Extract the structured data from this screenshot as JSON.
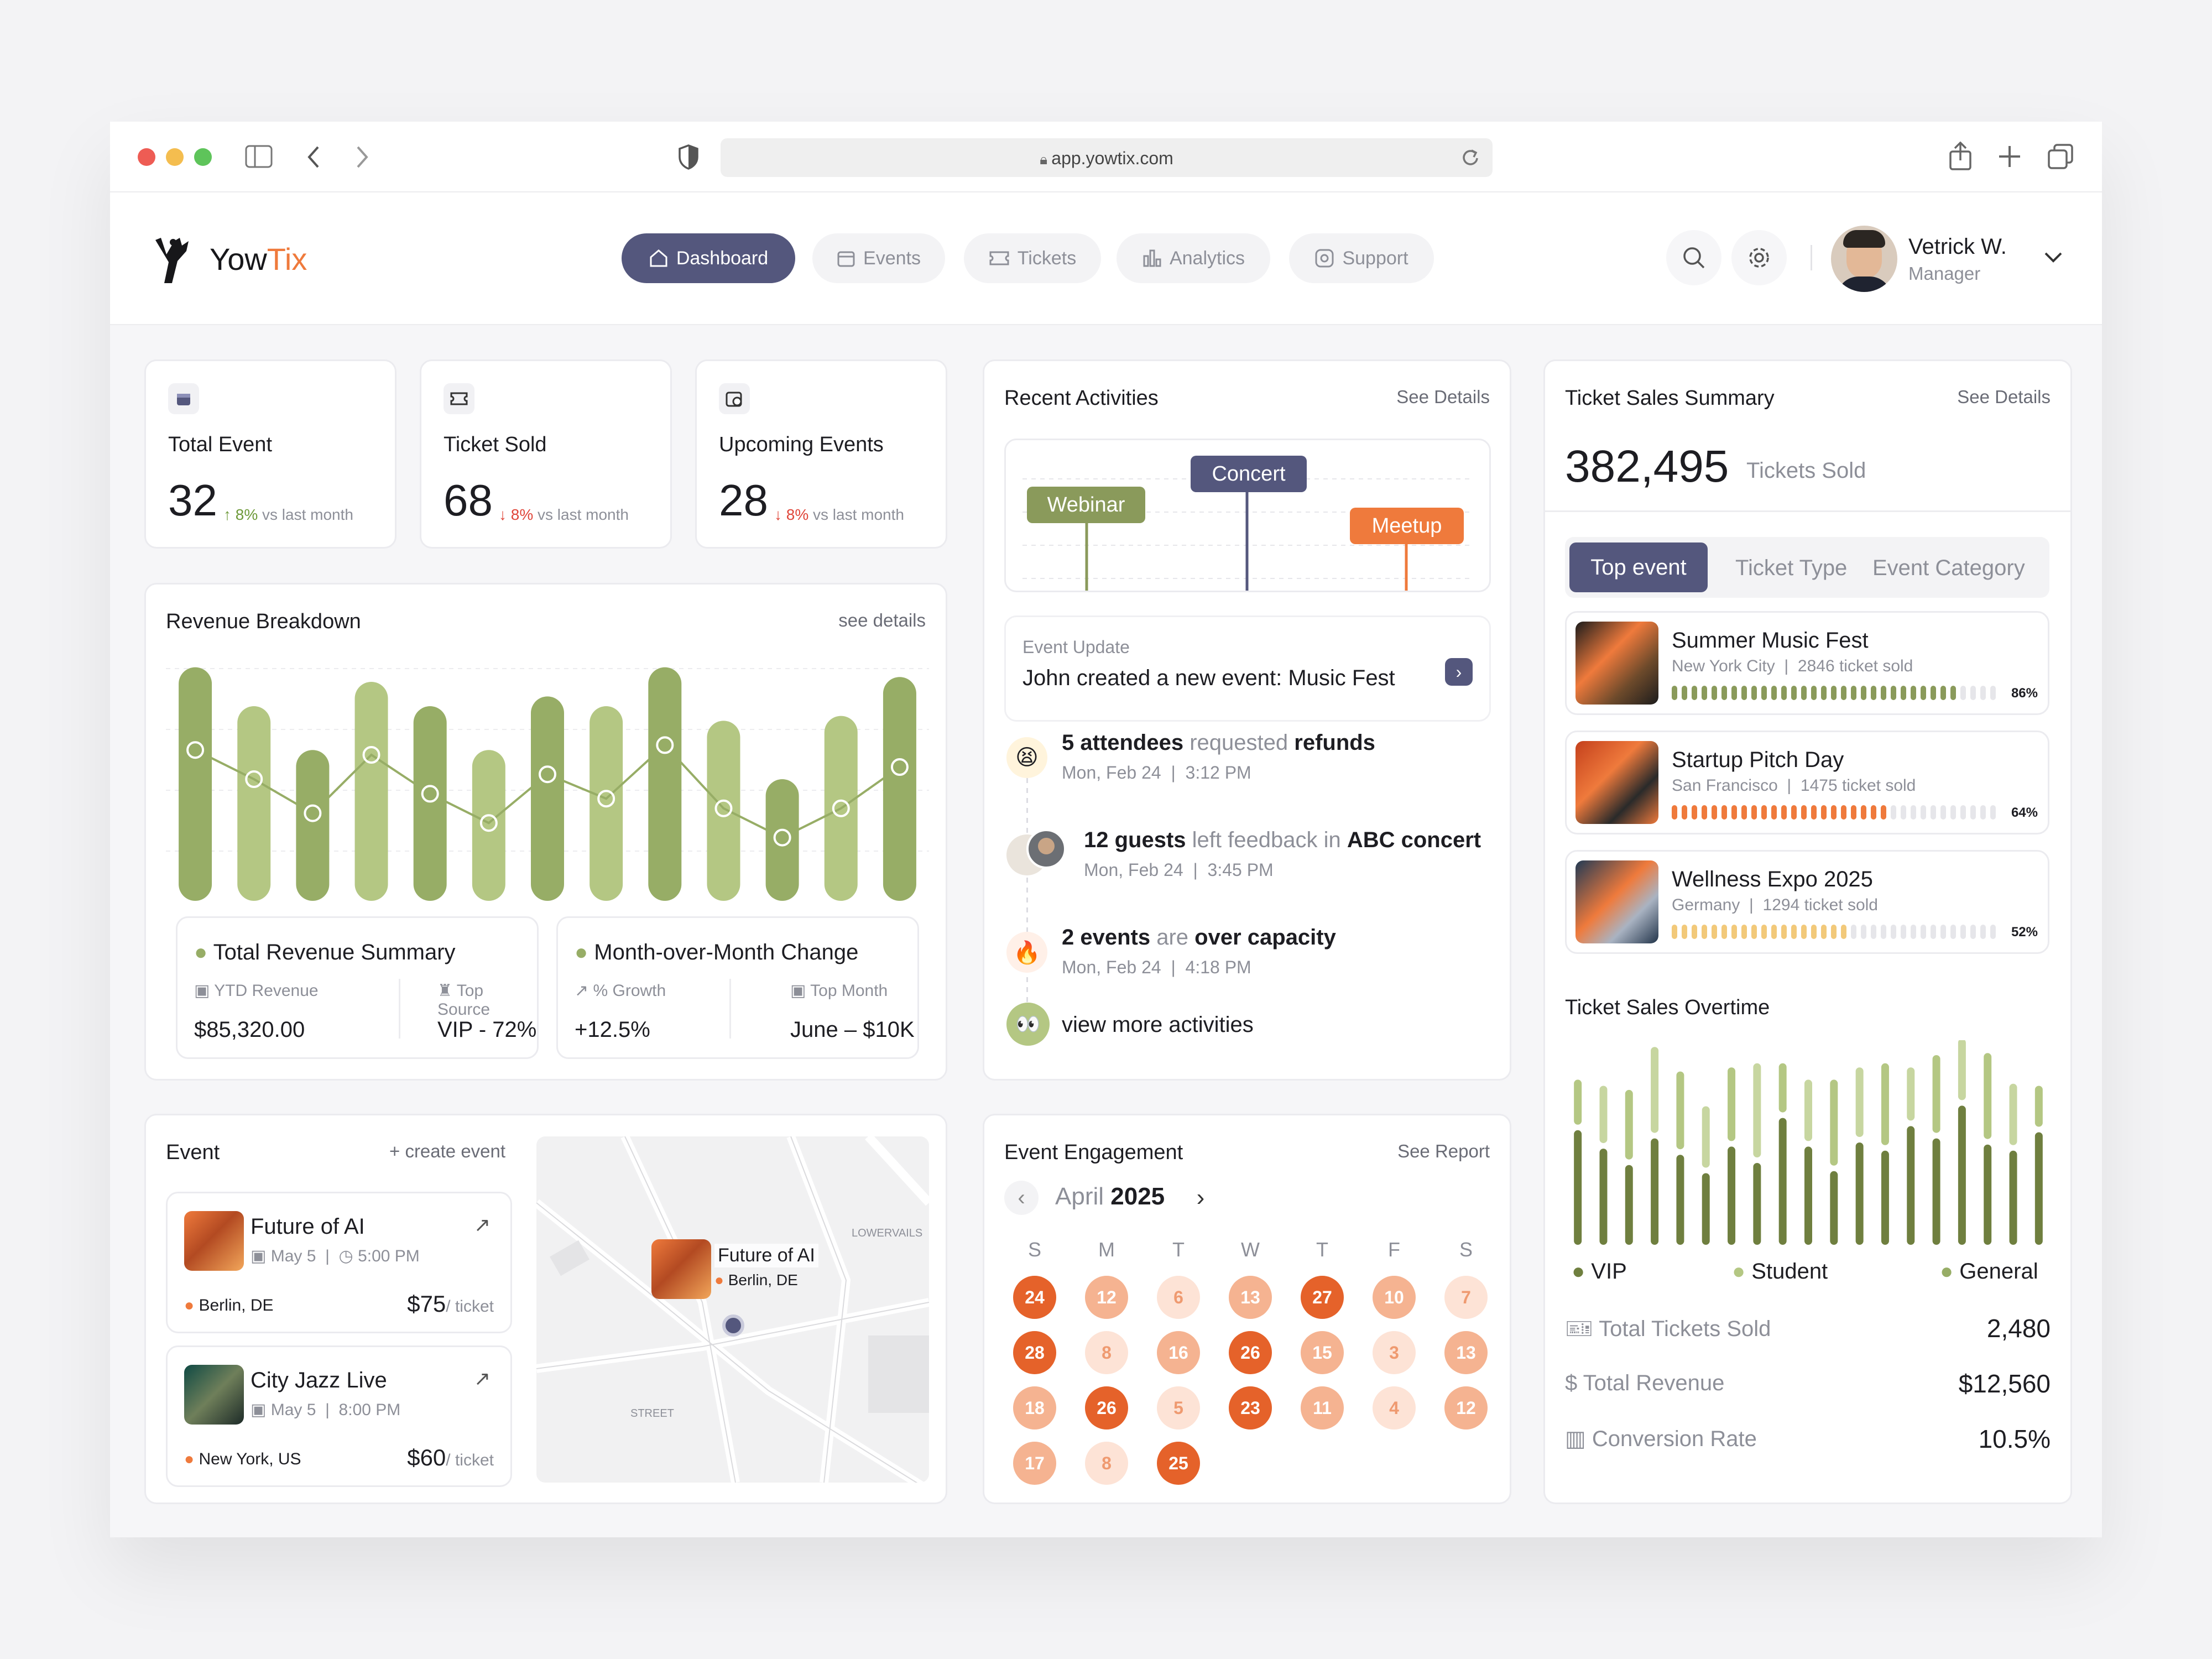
{
  "browser": {
    "url": "app.yowtix.com"
  },
  "brand": {
    "name_a": "Yow",
    "name_b": "Tix"
  },
  "nav": [
    {
      "label": "Dashboard",
      "icon": "home-icon",
      "active": true
    },
    {
      "label": "Events",
      "icon": "calendar-icon"
    },
    {
      "label": "Tickets",
      "icon": "ticket-icon"
    },
    {
      "label": "Analytics",
      "icon": "bar-chart-icon"
    },
    {
      "label": "Support",
      "icon": "support-icon"
    }
  ],
  "user": {
    "name": "Vetrick W.",
    "role": "Manager"
  },
  "stats": [
    {
      "title": "Total Event",
      "value": "32",
      "change": "↑ 8%",
      "note": "vs last month",
      "trend": "up"
    },
    {
      "title": "Ticket Sold",
      "value": "68",
      "change": "↓ 8%",
      "note": "vs last month",
      "trend": "down"
    },
    {
      "title": "Upcoming Events",
      "value": "28",
      "change": "↓ 8%",
      "note": "vs last month",
      "trend": "down"
    }
  ],
  "revenue": {
    "title": "Revenue Breakdown",
    "link": "see details",
    "summary_title": "Total Revenue Summary",
    "ytd_label": "YTD Revenue",
    "ytd_value": "$85,320.00",
    "source_label": "Top Source",
    "source_value": "VIP - 72%",
    "mom_title": "Month-over-Month Change",
    "growth_label": "% Growth",
    "growth_value": "+12.5%",
    "top_month_label": "Top Month",
    "top_month_value": "June – $10K"
  },
  "chart_data": {
    "type": "bar",
    "bar_heights": [
      0.96,
      0.8,
      0.62,
      0.9,
      0.8,
      0.62,
      0.84,
      0.8,
      0.96,
      0.74,
      0.5,
      0.76,
      0.92
    ],
    "line_points": [
      0.62,
      0.5,
      0.36,
      0.6,
      0.44,
      0.32,
      0.52,
      0.42,
      0.64,
      0.38,
      0.26,
      0.38,
      0.55
    ],
    "colors": {
      "bar": "#b4c783",
      "bar_dark": "#97ad66",
      "line": "#97ad66"
    }
  },
  "activities": {
    "title": "Recent Activities",
    "link": "See Details",
    "tags": [
      {
        "label": "Webinar",
        "color": "#8a9a5b"
      },
      {
        "label": "Concert",
        "color": "#54577d"
      },
      {
        "label": "Meetup",
        "color": "#ef7a3c"
      }
    ],
    "update_label": "Event Update",
    "update_text": "John created a new event: Music Fest",
    "items": [
      {
        "b1": "5 attendees",
        "m1": " requested ",
        "b2": "refunds",
        "date": "Mon, Feb 24",
        "time": "3:12 PM",
        "icon": "😫"
      },
      {
        "b1": "12 guests",
        "m1": " left feedback in ",
        "b2": "ABC concert",
        "date": "Mon, Feb 24",
        "time": "3:45 PM",
        "icon": "avatar"
      },
      {
        "b1": "2 events",
        "m1": " are ",
        "b2": "over capacity",
        "date": "Mon, Feb 24",
        "time": "4:18 PM",
        "icon": "🔥"
      }
    ],
    "more": "view more activities"
  },
  "ticket_summary": {
    "title": "Ticket Sales Summary",
    "link": "See Details",
    "total": "382,495",
    "total_label": "Tickets Sold",
    "tabs": [
      "Top event",
      "Ticket Type",
      "Event Category"
    ],
    "events": [
      {
        "name": "Summer Music Fest",
        "city": "New York City",
        "sold": "2846 ticket sold",
        "pct": "86%",
        "fill": 0.86,
        "color": "#8a9a5b"
      },
      {
        "name": "Startup Pitch Day",
        "city": "San Francisco",
        "sold": "1475 ticket sold",
        "pct": "64%",
        "fill": 0.64,
        "color": "#ef7a3c"
      },
      {
        "name": "Wellness Expo 2025",
        "city": "Germany",
        "sold": "1294 ticket sold",
        "pct": "52%",
        "fill": 0.52,
        "color": "#f2c97a"
      }
    ],
    "overtime_title": "Ticket Sales Overtime",
    "legend": [
      "VIP",
      "Student",
      "General"
    ],
    "metrics": [
      {
        "label": "Total Tickets Sold",
        "value": "2,480",
        "icon": "ticket-icon"
      },
      {
        "label": "Total Revenue",
        "value": "$12,560",
        "icon": "dollar-icon"
      },
      {
        "label": "Conversion Rate",
        "value": "10.5%",
        "icon": "bar-chart-icon"
      }
    ]
  },
  "overtime_data": {
    "bottom": [
      0.56,
      0.47,
      0.39,
      0.52,
      0.44,
      0.35,
      0.48,
      0.4,
      0.62,
      0.48,
      0.36,
      0.5,
      0.46,
      0.58,
      0.52,
      0.68,
      0.49,
      0.46,
      0.55
    ],
    "top": [
      0.22,
      0.28,
      0.34,
      0.42,
      0.38,
      0.3,
      0.36,
      0.46,
      0.24,
      0.3,
      0.42,
      0.34,
      0.4,
      0.26,
      0.38,
      0.3,
      0.42,
      0.3,
      0.2
    ]
  },
  "events_card": {
    "title": "Event",
    "create": "+ create event",
    "items": [
      {
        "name": "Future of AI",
        "date": "May 5",
        "time": "5:00 PM",
        "loc": "Berlin, DE",
        "price": "$75",
        "unit": "/ ticket"
      },
      {
        "name": "City Jazz Live",
        "date": "May 5",
        "time": "8:00 PM",
        "loc": "New York, US",
        "price": "$60",
        "unit": "/ ticket"
      }
    ],
    "map_pin": {
      "name": "Future of AI",
      "loc": "Berlin, DE"
    },
    "map_labels": [
      "LOWERVAILS",
      "STREET"
    ]
  },
  "engagement": {
    "title": "Event Engagement",
    "link": "See Report",
    "month": "April",
    "year": "2025",
    "weekdays": [
      "S",
      "M",
      "T",
      "W",
      "T",
      "F",
      "S"
    ],
    "days": [
      {
        "n": "24",
        "s": 3
      },
      {
        "n": "12",
        "s": 2
      },
      {
        "n": "6",
        "s": 1
      },
      {
        "n": "13",
        "s": 2
      },
      {
        "n": "27",
        "s": 3
      },
      {
        "n": "10",
        "s": 2
      },
      {
        "n": "7",
        "s": 1
      },
      {
        "n": "28",
        "s": 3
      },
      {
        "n": "8",
        "s": 1
      },
      {
        "n": "16",
        "s": 2
      },
      {
        "n": "26",
        "s": 3
      },
      {
        "n": "15",
        "s": 2
      },
      {
        "n": "3",
        "s": 1
      },
      {
        "n": "13",
        "s": 2
      },
      {
        "n": "18",
        "s": 2
      },
      {
        "n": "26",
        "s": 3
      },
      {
        "n": "5",
        "s": 1
      },
      {
        "n": "23",
        "s": 3
      },
      {
        "n": "11",
        "s": 2
      },
      {
        "n": "4",
        "s": 1
      },
      {
        "n": "12",
        "s": 2
      },
      {
        "n": "17",
        "s": 2
      },
      {
        "n": "8",
        "s": 1
      },
      {
        "n": "25",
        "s": 3
      }
    ]
  }
}
